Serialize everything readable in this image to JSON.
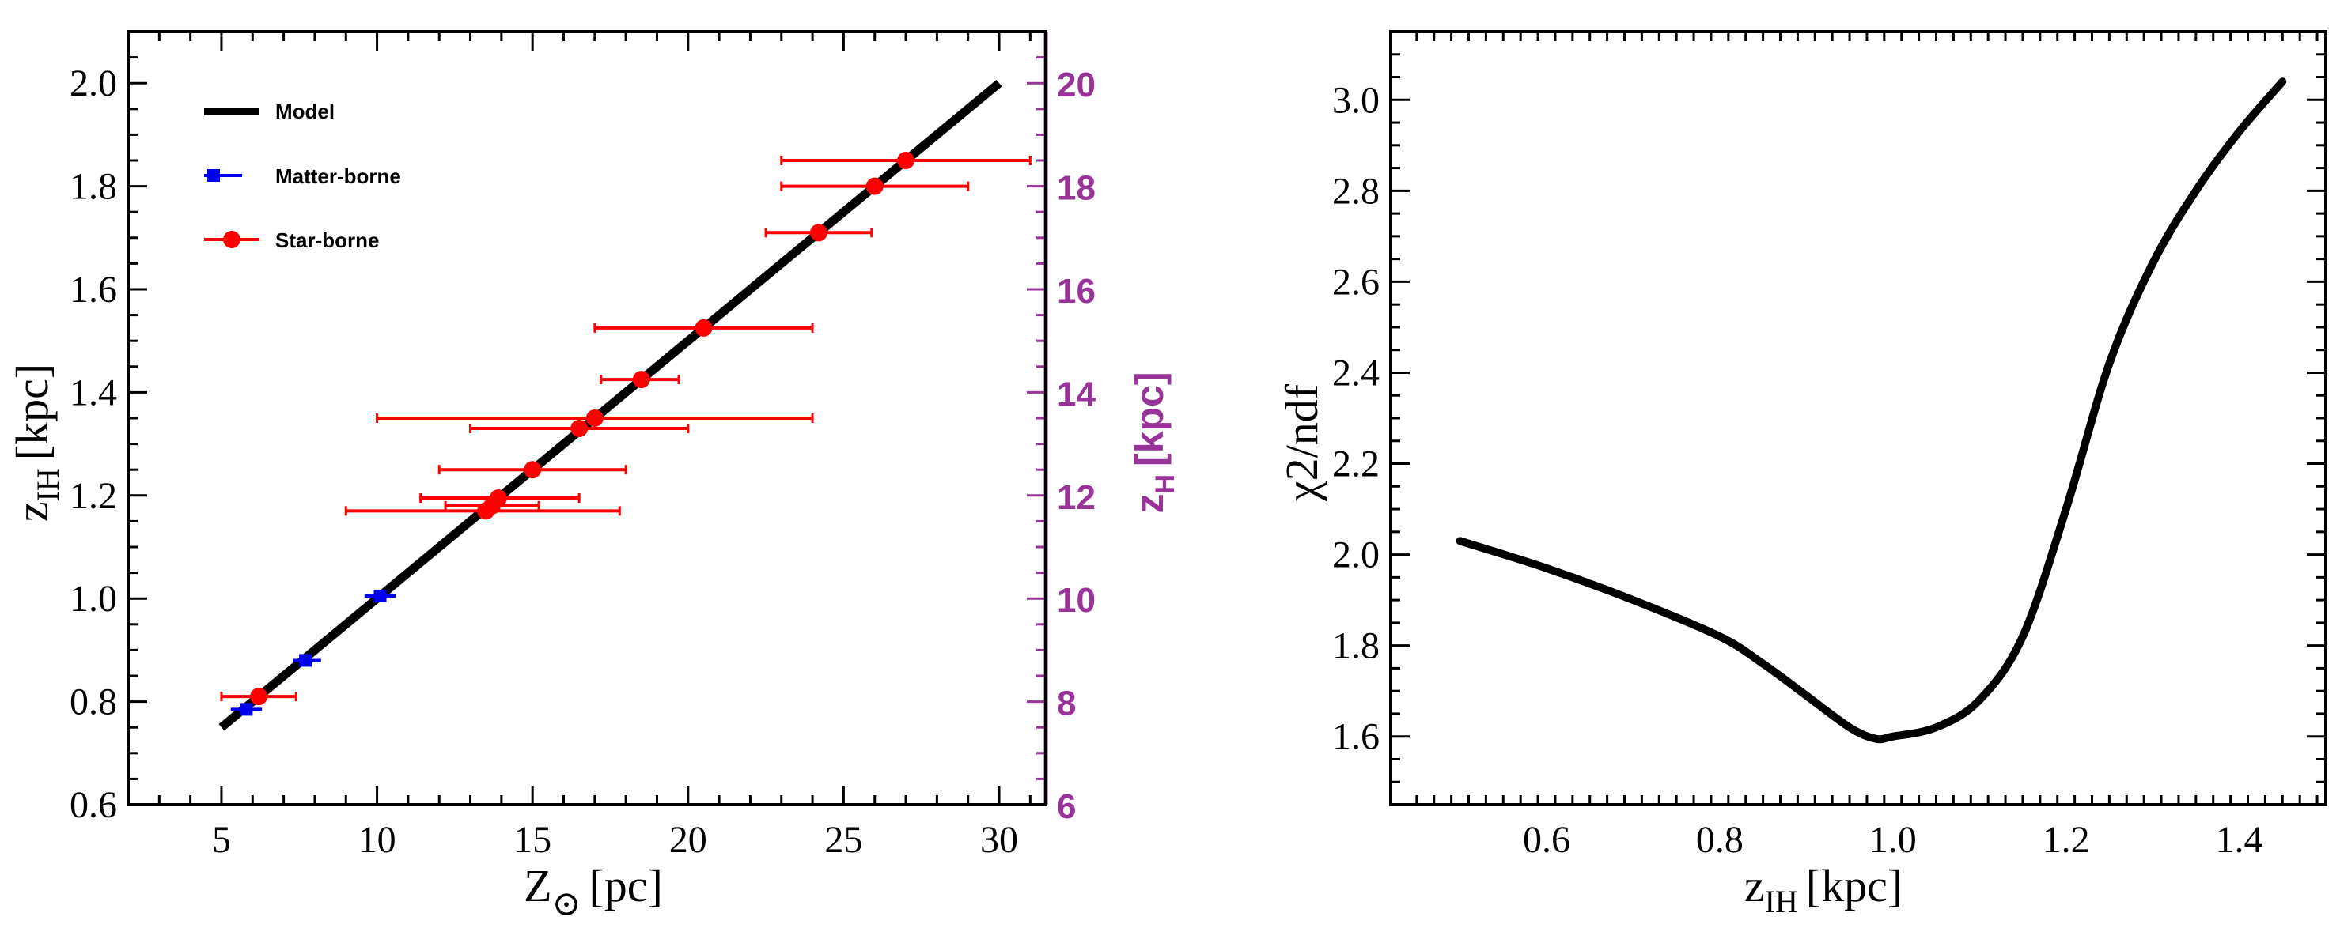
{
  "colors": {
    "model": "#000000",
    "matter": "#0000ee",
    "star": "#ff0000",
    "right_axis": "#993399"
  },
  "chart_data": [
    {
      "type": "scatter",
      "xlabel": "Z",
      "xlabel_unit": "[pc]",
      "ylabel_main": "z",
      "ylabel_sub": "IH",
      "ylabel_unit": "[kpc]",
      "y2label_main": "z",
      "y2label_sub": "H",
      "y2label_unit": "[kpc]",
      "xlim": [
        2,
        31.5
      ],
      "ylim": [
        0.6,
        2.1
      ],
      "y2lim": [
        6,
        21
      ],
      "xticks": [
        5,
        10,
        15,
        20,
        25,
        30
      ],
      "yticks": [
        0.6,
        0.8,
        1.0,
        1.2,
        1.4,
        1.6,
        1.8,
        2.0
      ],
      "y2ticks": [
        6,
        8,
        10,
        12,
        14,
        16,
        18,
        20
      ],
      "legend_position": "top-left",
      "series": [
        {
          "name": "Model",
          "kind": "line",
          "x": [
            5,
            30
          ],
          "y": [
            0.75,
            2.0
          ]
        },
        {
          "name": "Matter-borne",
          "kind": "points",
          "marker": "square",
          "points": [
            {
              "x": 5.8,
              "y": 0.785,
              "xerr": [
                5.3,
                6.3
              ]
            },
            {
              "x": 7.7,
              "y": 0.88,
              "xerr": [
                7.3,
                8.2
              ]
            },
            {
              "x": 10.1,
              "y": 1.005,
              "xerr": [
                9.6,
                10.6
              ]
            }
          ]
        },
        {
          "name": "Star-borne",
          "kind": "points",
          "marker": "circle",
          "points": [
            {
              "x": 6.2,
              "y": 0.81,
              "xerr": [
                5.0,
                7.4
              ]
            },
            {
              "x": 13.5,
              "y": 1.17,
              "xerr": [
                9.0,
                17.8
              ]
            },
            {
              "x": 13.7,
              "y": 1.18,
              "xerr": [
                12.2,
                15.2
              ]
            },
            {
              "x": 13.9,
              "y": 1.195,
              "xerr": [
                11.4,
                16.5
              ]
            },
            {
              "x": 15.0,
              "y": 1.25,
              "xerr": [
                12.0,
                18.0
              ]
            },
            {
              "x": 16.5,
              "y": 1.33,
              "xerr": [
                13.0,
                20.0
              ]
            },
            {
              "x": 17.0,
              "y": 1.35,
              "xerr": [
                10.0,
                24.0
              ]
            },
            {
              "x": 18.5,
              "y": 1.425,
              "xerr": [
                17.2,
                19.7
              ]
            },
            {
              "x": 20.5,
              "y": 1.525,
              "xerr": [
                17.0,
                24.0
              ]
            },
            {
              "x": 24.2,
              "y": 1.71,
              "xerr": [
                22.5,
                25.9
              ]
            },
            {
              "x": 26.0,
              "y": 1.8,
              "xerr": [
                23.0,
                29.0
              ]
            },
            {
              "x": 27.0,
              "y": 1.85,
              "xerr": [
                23.0,
                31.0
              ]
            }
          ]
        }
      ]
    },
    {
      "type": "line",
      "xlabel_main": "z",
      "xlabel_sub": "IH",
      "xlabel_unit": "[kpc]",
      "ylabel": "χ2/ndf",
      "xlim": [
        0.42,
        1.5
      ],
      "ylim": [
        1.45,
        3.15
      ],
      "xticks": [
        0.6,
        0.8,
        1.0,
        1.2,
        1.4
      ],
      "yticks": [
        1.6,
        1.8,
        2.0,
        2.2,
        2.4,
        2.6,
        2.8,
        3.0
      ],
      "series": [
        {
          "x": [
            0.5,
            0.6,
            0.7,
            0.8,
            0.85,
            0.9,
            0.95,
            0.98,
            1.0,
            1.05,
            1.1,
            1.15,
            1.2,
            1.25,
            1.3,
            1.35,
            1.4,
            1.45
          ],
          "y": [
            2.03,
            1.97,
            1.9,
            1.82,
            1.76,
            1.69,
            1.62,
            1.595,
            1.6,
            1.62,
            1.68,
            1.82,
            2.1,
            2.42,
            2.64,
            2.8,
            2.93,
            3.04
          ]
        }
      ]
    }
  ]
}
